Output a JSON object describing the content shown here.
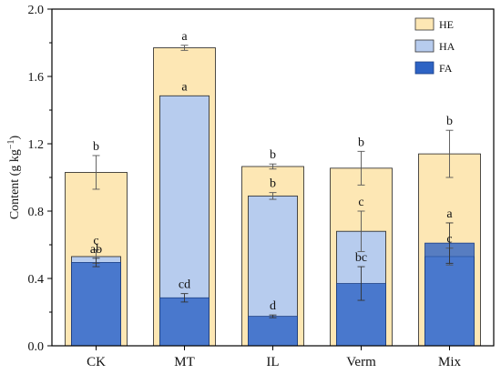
{
  "chart_data": {
    "type": "bar",
    "ylabel": "Content (g kg",
    "ylabel_sup": "−1",
    "ylabel_close": ")",
    "ylim": [
      0,
      2.0
    ],
    "yticks": [
      "0.0",
      "0.4",
      "0.8",
      "1.2",
      "1.6",
      "2.0"
    ],
    "categories": [
      "CK",
      "MT",
      "IL",
      "Verm",
      "Mix"
    ],
    "legend_position": "top-right",
    "series": [
      {
        "name": "HE",
        "color": "#fde7b4",
        "values": [
          1.03,
          1.77,
          1.065,
          1.055,
          1.14
        ],
        "errors": [
          0.1,
          0.015,
          0.015,
          0.1,
          0.14
        ],
        "letters": [
          "b",
          "a",
          "b",
          "b",
          "b"
        ]
      },
      {
        "name": "HA",
        "color": "#b7ccee",
        "values": [
          0.53,
          1.485,
          0.89,
          0.68,
          0.53
        ],
        "errors": [
          0.04,
          0.0,
          0.02,
          0.12,
          0.05
        ],
        "letters": [
          "c",
          "a",
          "b",
          "c",
          "c"
        ]
      },
      {
        "name": "FA",
        "color": "#2d63c4",
        "values": [
          0.495,
          0.285,
          0.175,
          0.37,
          0.61
        ],
        "errors": [
          0.025,
          0.025,
          0.008,
          0.1,
          0.12
        ],
        "letters": [
          "ab",
          "cd",
          "d",
          "bc",
          "a"
        ]
      }
    ]
  }
}
